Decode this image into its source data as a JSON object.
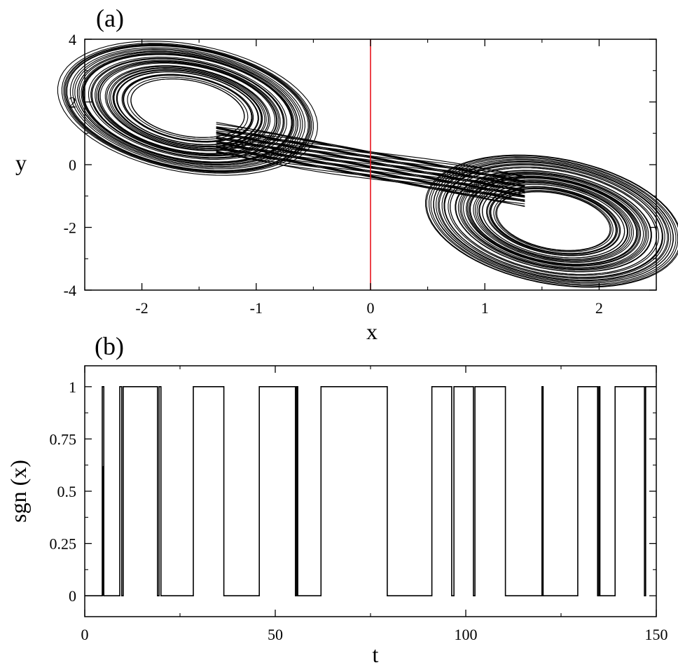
{
  "colors": {
    "axis": "#000000",
    "trace": "#000000",
    "marker_line": "#e8141e"
  },
  "chart_data": [
    {
      "type": "scatter",
      "panel_label": "(a)",
      "xlabel": "x",
      "ylabel": "y",
      "xlim": [
        -2.5,
        2.5
      ],
      "ylim": [
        -4,
        4
      ],
      "x_ticks": [
        -2,
        -1,
        0,
        1,
        2
      ],
      "x_tick_labels": [
        "-2",
        "-1",
        "0",
        "1",
        "2"
      ],
      "y_ticks": [
        -4,
        -2,
        0,
        2,
        4
      ],
      "y_tick_labels": [
        "-4",
        "-2",
        "0",
        "2",
        "4"
      ],
      "grid": false,
      "vertical_line_x": 0,
      "attractor": {
        "lobes": [
          {
            "center": [
              -1.6,
              1.8
            ],
            "orbit_radii": [
              0.35,
              0.8
            ],
            "tilt_deg": -34,
            "aspect": 0.42
          },
          {
            "center": [
              1.6,
              -1.8
            ],
            "orbit_radii": [
              0.35,
              0.8
            ],
            "tilt_deg": -34,
            "aspect": 0.42
          }
        ],
        "bridge": {
          "x_range": [
            -0.9,
            0.9
          ],
          "y_at_ends": [
            0.7,
            -0.7
          ],
          "half_width": 0.45
        }
      }
    },
    {
      "type": "line",
      "panel_label": "(b)",
      "xlabel": "t",
      "ylabel": "sgn (x)",
      "xlim": [
        0,
        150
      ],
      "ylim": [
        -0.1,
        1.1
      ],
      "x_ticks": [
        0,
        50,
        100,
        150
      ],
      "x_tick_labels": [
        "0",
        "50",
        "100",
        "150"
      ],
      "y_ticks": [
        0,
        0.25,
        0.5,
        0.75,
        1
      ],
      "y_tick_labels": [
        "0",
        "0.25",
        "0.5",
        "0.75",
        "1"
      ],
      "grid": false,
      "transitions": [
        4.6,
        5.0,
        9.2,
        9.7,
        10.1,
        19.1,
        19.5,
        20.0,
        28.5,
        36.5,
        45.8,
        55.3,
        55.6,
        55.9,
        62.0,
        79.4,
        91.1,
        96.3,
        96.9,
        102.0,
        102.4,
        110.4,
        120.0,
        120.3,
        129.4,
        134.6,
        134.9,
        135.2,
        139.2,
        146.9,
        147.2
      ],
      "initial_value": 0,
      "spike": {
        "t": 4.8,
        "from": 0,
        "to": 0.62
      }
    }
  ]
}
